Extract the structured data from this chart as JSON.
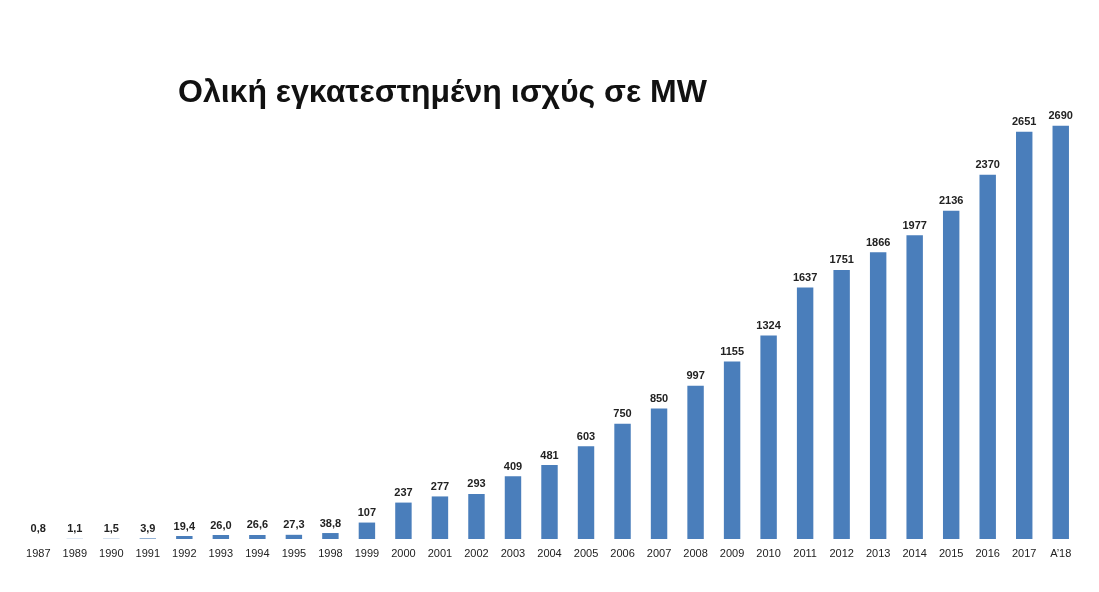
{
  "chart_data": {
    "type": "bar",
    "title": "Ολική εγκατεστημένη ισχύς σε MW",
    "categories": [
      "1987",
      "1989",
      "1990",
      "1991",
      "1992",
      "1993",
      "1994",
      "1995",
      "1998",
      "1999",
      "2000",
      "2001",
      "2002",
      "2003",
      "2004",
      "2005",
      "2006",
      "2007",
      "2008",
      "2009",
      "2010",
      "2011",
      "2012",
      "2013",
      "2014",
      "2015",
      "2016",
      "2017",
      "A’18"
    ],
    "values": [
      0.8,
      1.1,
      1.5,
      3.9,
      19.4,
      26.0,
      26.6,
      27.3,
      38.8,
      107,
      237,
      277,
      293,
      409,
      481,
      603,
      750,
      850,
      997,
      1155,
      1324,
      1637,
      1751,
      1866,
      1977,
      2136,
      2370,
      2651,
      2690
    ],
    "value_labels": [
      "0,8",
      "1,1",
      "1,5",
      "3,9",
      "19,4",
      "26,0",
      "26,6",
      "27,3",
      "38,8",
      "107",
      "237",
      "277",
      "293",
      "409",
      "481",
      "603",
      "750",
      "850",
      "997",
      "1155",
      "1324",
      "1637",
      "1751",
      "1866",
      "1977",
      "2136",
      "2370",
      "2651",
      "2690"
    ],
    "color": "#4a7ebb"
  }
}
